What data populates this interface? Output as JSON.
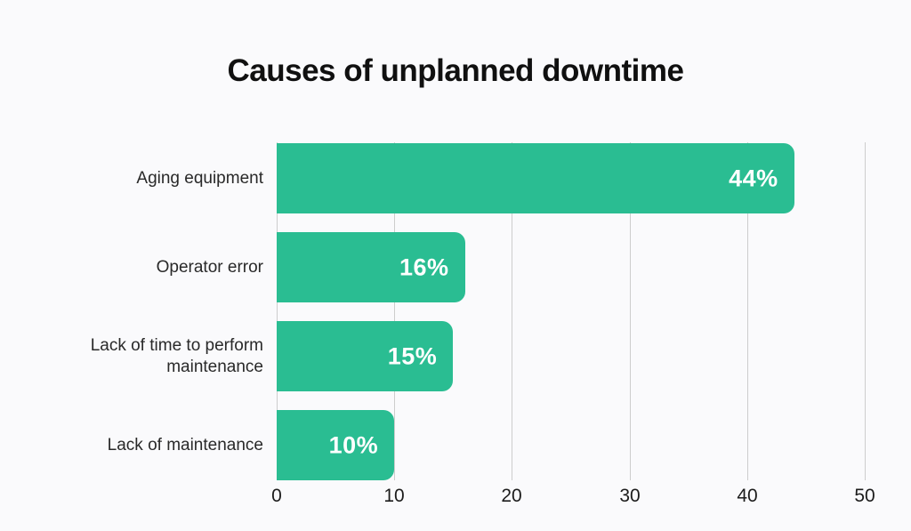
{
  "chart_data": {
    "type": "bar",
    "orientation": "horizontal",
    "title": "Causes of unplanned downtime",
    "categories": [
      "Aging equipment",
      "Operator error",
      "Lack of time to perform maintenance",
      "Lack of maintenance"
    ],
    "values": [
      44,
      16,
      15,
      10
    ],
    "value_labels": [
      "44%",
      "16%",
      "15%",
      "10%"
    ],
    "xlabel": "",
    "ylabel": "",
    "xlim": [
      0,
      50
    ],
    "x_ticks": [
      0,
      10,
      20,
      30,
      40,
      50
    ],
    "grid": "vertical-only",
    "legend": "none",
    "colors": {
      "bar": "#2ABD92",
      "background": "#FAFAFC",
      "gridline": "#CDCDCD",
      "title_text": "#101010",
      "category_text": "#292929",
      "tick_text": "#1C1C1C",
      "value_text": "#FFFFFF"
    }
  }
}
